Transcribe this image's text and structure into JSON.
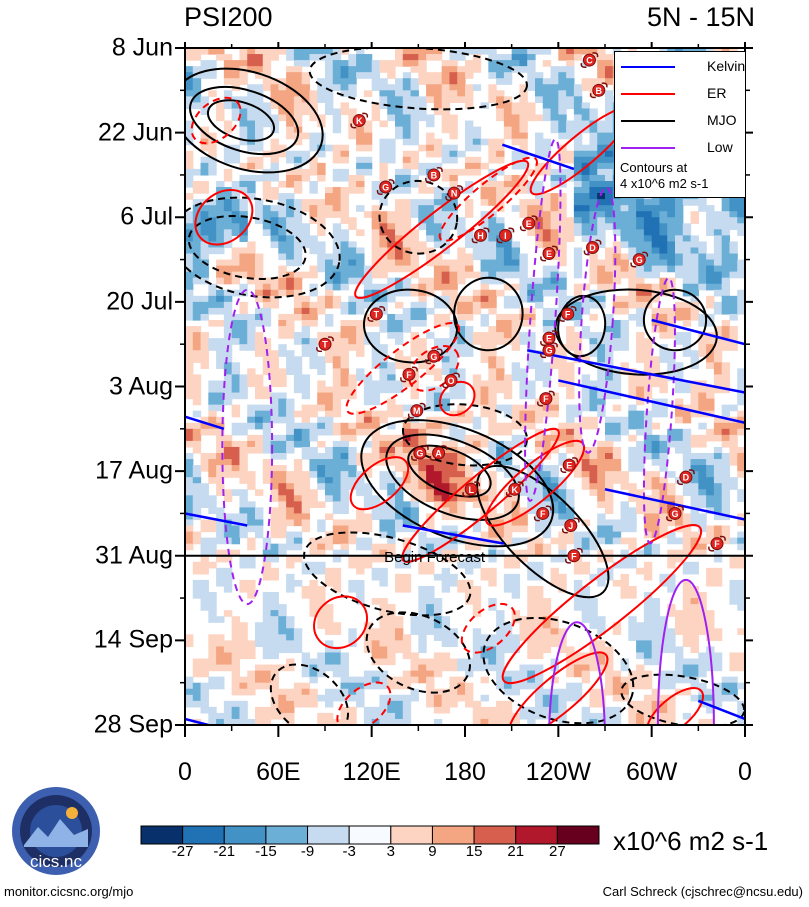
{
  "chart_data": {
    "type": "heatmap",
    "title_left": "PSI200",
    "title_right": "5N - 15N",
    "y_labels": [
      "8 Jun",
      "22 Jun",
      "6 Jul",
      "20 Jul",
      "3 Aug",
      "17 Aug",
      "31 Aug",
      "14 Sep",
      "28 Sep"
    ],
    "x_labels": [
      "0",
      "60E",
      "120E",
      "180",
      "120W",
      "60W",
      "0"
    ],
    "x_range_deg": [
      0,
      360
    ],
    "time_range_days": [
      0,
      112
    ],
    "forecast_label": "Begin Forecast",
    "forecast_start_day": 84,
    "legend": [
      {
        "name": "Kelvin",
        "color": "#0000ff"
      },
      {
        "name": "ER",
        "color": "#ff0000"
      },
      {
        "name": "MJO",
        "color": "#000000"
      },
      {
        "name": "Low",
        "color": "#a020f0"
      }
    ],
    "legend_note_line1": "Contours at",
    "legend_note_line2": "4 x10^6 m2 s-1",
    "colorbar": {
      "levels": [
        "-27",
        "-21",
        "-15",
        "-9",
        "-3",
        "3",
        "9",
        "15",
        "21",
        "27"
      ],
      "colors": [
        "#08306b",
        "#2171b5",
        "#4292c6",
        "#6baed6",
        "#c6dbef",
        "#f7fbff",
        "#fdd4c2",
        "#f4a582",
        "#d6604d",
        "#b2182b",
        "#67001f"
      ],
      "units": "x10^6 m2 s-1"
    },
    "storms": [
      {
        "letter": "C",
        "lon": 260,
        "day": 2
      },
      {
        "letter": "B",
        "lon": 266,
        "day": 7
      },
      {
        "letter": "K",
        "lon": 112,
        "day": 12
      },
      {
        "letter": "B",
        "lon": 160,
        "day": 21
      },
      {
        "letter": "G",
        "lon": 129,
        "day": 23
      },
      {
        "letter": "N",
        "lon": 173,
        "day": 24
      },
      {
        "letter": "E",
        "lon": 221,
        "day": 29
      },
      {
        "letter": "H",
        "lon": 190,
        "day": 31
      },
      {
        "letter": "I",
        "lon": 206,
        "day": 31
      },
      {
        "letter": "D",
        "lon": 262,
        "day": 33
      },
      {
        "letter": "E",
        "lon": 234,
        "day": 34
      },
      {
        "letter": "G",
        "lon": 292,
        "day": 35
      },
      {
        "letter": "F",
        "lon": 246,
        "day": 44
      },
      {
        "letter": "T",
        "lon": 123,
        "day": 44
      },
      {
        "letter": "E",
        "lon": 234,
        "day": 48
      },
      {
        "letter": "T",
        "lon": 90,
        "day": 49
      },
      {
        "letter": "G",
        "lon": 234,
        "day": 50
      },
      {
        "letter": "G",
        "lon": 160,
        "day": 51
      },
      {
        "letter": "F",
        "lon": 144,
        "day": 54
      },
      {
        "letter": "O",
        "lon": 171,
        "day": 55
      },
      {
        "letter": "F",
        "lon": 232,
        "day": 58
      },
      {
        "letter": "M",
        "lon": 149,
        "day": 60
      },
      {
        "letter": "G",
        "lon": 151,
        "day": 67
      },
      {
        "letter": "A",
        "lon": 163,
        "day": 67
      },
      {
        "letter": "E",
        "lon": 247,
        "day": 69
      },
      {
        "letter": "D",
        "lon": 322,
        "day": 71
      },
      {
        "letter": "L",
        "lon": 184,
        "day": 73
      },
      {
        "letter": "K",
        "lon": 212,
        "day": 73
      },
      {
        "letter": "G",
        "lon": 315,
        "day": 77
      },
      {
        "letter": "F",
        "lon": 230,
        "day": 77
      },
      {
        "letter": "J",
        "lon": 248,
        "day": 79
      },
      {
        "letter": "F",
        "lon": 342,
        "day": 82
      },
      {
        "letter": "F",
        "lon": 250,
        "day": 84
      }
    ],
    "contours": [
      {
        "kind": "MJO",
        "style": "solid",
        "cx": 40,
        "cy": 12,
        "rx": 50,
        "ry": 8,
        "rot": 18
      },
      {
        "kind": "MJO",
        "style": "solid",
        "cx": 38,
        "cy": 12,
        "rx": 36,
        "ry": 5,
        "rot": 18
      },
      {
        "kind": "MJO",
        "style": "solid",
        "cx": 36,
        "cy": 12,
        "rx": 22,
        "ry": 3,
        "rot": 18
      },
      {
        "kind": "MJO",
        "style": "dashed",
        "cx": 45,
        "cy": 33,
        "rx": 55,
        "ry": 8,
        "rot": 10
      },
      {
        "kind": "MJO",
        "style": "dashed",
        "cx": 40,
        "cy": 33,
        "rx": 38,
        "ry": 5,
        "rot": 10
      },
      {
        "kind": "MJO",
        "style": "dashed",
        "cx": 150,
        "cy": 5,
        "rx": 70,
        "ry": 5,
        "rot": 4
      },
      {
        "kind": "MJO",
        "style": "solid",
        "cx": 145,
        "cy": 46,
        "rx": 30,
        "ry": 6,
        "rot": 5
      },
      {
        "kind": "MJO",
        "style": "solid",
        "cx": 195,
        "cy": 44,
        "rx": 22,
        "ry": 6,
        "rot": 5
      },
      {
        "kind": "MJO",
        "style": "solid",
        "cx": 290,
        "cy": 47,
        "rx": 52,
        "ry": 7,
        "rot": 4
      },
      {
        "kind": "MJO",
        "style": "solid",
        "cx": 255,
        "cy": 46,
        "rx": 15,
        "ry": 5,
        "rot": 8
      },
      {
        "kind": "MJO",
        "style": "solid",
        "cx": 315,
        "cy": 45,
        "rx": 20,
        "ry": 5,
        "rot": 8
      },
      {
        "kind": "MJO",
        "style": "dashed",
        "cx": 150,
        "cy": 28,
        "rx": 25,
        "ry": 6,
        "rot": 8
      },
      {
        "kind": "MJO",
        "style": "solid",
        "cx": 175,
        "cy": 72,
        "rx": 65,
        "ry": 9,
        "rot": 22
      },
      {
        "kind": "MJO",
        "style": "solid",
        "cx": 172,
        "cy": 71,
        "rx": 45,
        "ry": 6,
        "rot": 22
      },
      {
        "kind": "MJO",
        "style": "solid",
        "cx": 170,
        "cy": 70,
        "rx": 28,
        "ry": 3.5,
        "rot": 22
      },
      {
        "kind": "MJO",
        "style": "solid",
        "cx": 230,
        "cy": 80,
        "rx": 55,
        "ry": 6,
        "rot": 45
      },
      {
        "kind": "MJO",
        "style": "dashed",
        "cx": 180,
        "cy": 64,
        "rx": 40,
        "ry": 5,
        "rot": 5
      },
      {
        "kind": "MJO",
        "style": "dashed",
        "cx": 130,
        "cy": 87,
        "rx": 55,
        "ry": 6,
        "rot": 15
      },
      {
        "kind": "MJO",
        "style": "dashed",
        "cx": 150,
        "cy": 100,
        "rx": 35,
        "ry": 6,
        "rot": 25
      },
      {
        "kind": "MJO",
        "style": "dashed",
        "cx": 80,
        "cy": 108,
        "rx": 28,
        "ry": 5,
        "rot": 40
      },
      {
        "kind": "MJO",
        "style": "dashed",
        "cx": 240,
        "cy": 103,
        "rx": 50,
        "ry": 8,
        "rot": 20
      },
      {
        "kind": "MJO",
        "style": "dashed",
        "cx": 320,
        "cy": 108,
        "rx": 40,
        "ry": 4,
        "rot": 10
      },
      {
        "kind": "ER",
        "style": "solid",
        "cx": 25,
        "cy": 28,
        "rx": 20,
        "ry": 4,
        "rot": -40
      },
      {
        "kind": "ER",
        "style": "dashed",
        "cx": 20,
        "cy": 12,
        "rx": 18,
        "ry": 3,
        "rot": -40
      },
      {
        "kind": "ER",
        "style": "solid",
        "cx": 165,
        "cy": 30,
        "rx": 70,
        "ry": 3,
        "rot": -38
      },
      {
        "kind": "ER",
        "style": "dashed",
        "cx": 195,
        "cy": 25,
        "rx": 40,
        "ry": 2.5,
        "rot": -40
      },
      {
        "kind": "ER",
        "style": "solid",
        "cx": 255,
        "cy": 17,
        "rx": 42,
        "ry": 2.5,
        "rot": -40
      },
      {
        "kind": "ER",
        "style": "dashed",
        "cx": 140,
        "cy": 53,
        "rx": 45,
        "ry": 3,
        "rot": -38
      },
      {
        "kind": "ER",
        "style": "dashed",
        "cx": 160,
        "cy": 53,
        "rx": 18,
        "ry": 3,
        "rot": -38
      },
      {
        "kind": "ER",
        "style": "solid",
        "cx": 175,
        "cy": 58,
        "rx": 12,
        "ry": 2.5,
        "rot": -40
      },
      {
        "kind": "ER",
        "style": "solid",
        "cx": 125,
        "cy": 72,
        "rx": 22,
        "ry": 3,
        "rot": -40
      },
      {
        "kind": "ER",
        "style": "solid",
        "cx": 190,
        "cy": 74,
        "rx": 65,
        "ry": 3,
        "rot": -40
      },
      {
        "kind": "ER",
        "style": "solid",
        "cx": 225,
        "cy": 72,
        "rx": 40,
        "ry": 3,
        "rot": -40
      },
      {
        "kind": "ER",
        "style": "solid",
        "cx": 268,
        "cy": 92,
        "rx": 80,
        "ry": 4,
        "rot": -38
      },
      {
        "kind": "ER",
        "style": "solid",
        "cx": 100,
        "cy": 95,
        "rx": 18,
        "ry": 4,
        "rot": -40
      },
      {
        "kind": "ER",
        "style": "dashed",
        "cx": 195,
        "cy": 96,
        "rx": 20,
        "ry": 3,
        "rot": -40
      },
      {
        "kind": "ER",
        "style": "dashed",
        "cx": 115,
        "cy": 109,
        "rx": 20,
        "ry": 3,
        "rot": -40
      },
      {
        "kind": "ER",
        "style": "solid",
        "cx": 240,
        "cy": 107,
        "rx": 40,
        "ry": 3,
        "rot": -40
      },
      {
        "kind": "ER",
        "style": "solid",
        "cx": 315,
        "cy": 110,
        "rx": 22,
        "ry": 2.5,
        "rot": -40
      },
      {
        "kind": "Low",
        "style": "dashed",
        "cx": 40,
        "cy": 66,
        "rx": 16,
        "ry": 26,
        "rot": 0
      },
      {
        "kind": "Low",
        "style": "dashed",
        "cx": 230,
        "cy": 45,
        "rx": 8,
        "ry": 30,
        "rot": 4
      },
      {
        "kind": "Low",
        "style": "dashed",
        "cx": 265,
        "cy": 45,
        "rx": 10,
        "ry": 22,
        "rot": 4
      },
      {
        "kind": "Low",
        "style": "dashed",
        "cx": 305,
        "cy": 60,
        "rx": 8,
        "ry": 22,
        "rot": 4
      },
      {
        "kind": "Low",
        "style": "solid",
        "cx": 252,
        "cy": 115,
        "rx": 18,
        "ry": 20,
        "rot": 0
      },
      {
        "kind": "Low",
        "style": "solid",
        "cx": 322,
        "cy": 112,
        "rx": 18,
        "ry": 24,
        "rot": 0
      }
    ],
    "kelvin_lines": [
      {
        "lon1": 204,
        "day1": 16,
        "lon2": 250,
        "day2": 20
      },
      {
        "lon1": 220,
        "day1": 50,
        "lon2": 360,
        "day2": 57
      },
      {
        "lon1": 240,
        "day1": 55,
        "lon2": 360,
        "day2": 62
      },
      {
        "lon1": 300,
        "day1": 45,
        "lon2": 360,
        "day2": 49
      },
      {
        "lon1": 0,
        "day1": 61,
        "lon2": 25,
        "day2": 63
      },
      {
        "lon1": 0,
        "day1": 77,
        "lon2": 40,
        "day2": 79
      },
      {
        "lon1": 270,
        "day1": 73,
        "lon2": 360,
        "day2": 78
      },
      {
        "lon1": 140,
        "day1": 79,
        "lon2": 205,
        "day2": 82
      },
      {
        "lon1": 330,
        "day1": 108,
        "lon2": 360,
        "day2": 111
      },
      {
        "lon1": 0,
        "day1": 111,
        "lon2": 15,
        "day2": 112
      }
    ]
  },
  "footer": {
    "logo_text": "cics.nc",
    "left": "monitor.cicsnc.org/mjo",
    "right": "Carl Schreck (cjschrec@ncsu.edu)"
  }
}
